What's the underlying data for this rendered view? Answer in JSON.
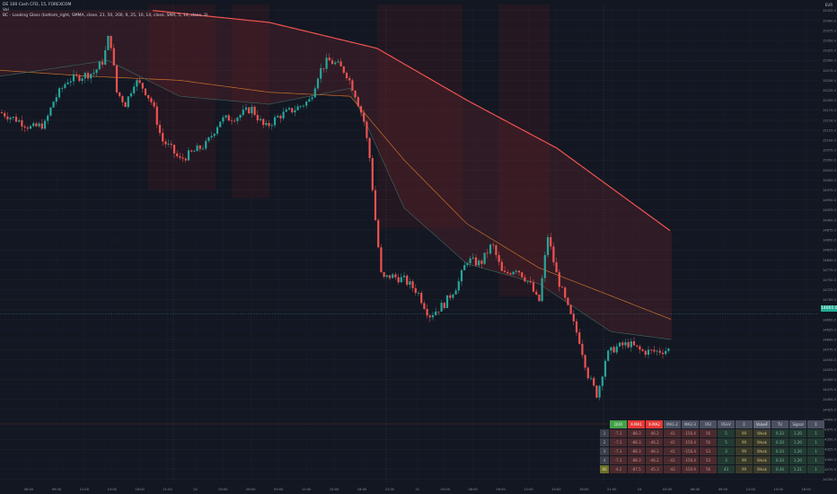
{
  "legend": {
    "line1": "DE 100 Cash CFD, 15, FOREXCOM",
    "line2": "Vol",
    "line3": "BC - Looking Glass (bottom_right, SMMA, close, 21, 50, 200, 9, 25, 10, 14, close, SMA, 5, 14, close, 3)"
  },
  "currency_label": "EUR",
  "current_price_label": "14665.0",
  "chart_data": {
    "type": "candlestick",
    "title": "",
    "x_ticks": [
      "06:00",
      "09:00",
      "12:00",
      "15:00",
      "18:00",
      "21:00",
      "20",
      "03:00",
      "06:00",
      "09:00",
      "12:00",
      "15:00",
      "18:00",
      "21:00",
      "21",
      "03:00",
      "06:00",
      "09:00",
      "12:00",
      "15:00",
      "18:00",
      "21:00",
      "24",
      "03:00",
      "06:00",
      "09:00",
      "12:00",
      "15:00",
      "18:00"
    ],
    "y_ticks": [
      15425,
      15400,
      15375,
      15350,
      15325,
      15300,
      15275,
      15250,
      15225,
      15200,
      15175,
      15150,
      15125,
      15100,
      15075,
      15050,
      15025,
      15000,
      14975,
      14950,
      14925,
      14900,
      14875,
      14850,
      14825,
      14800,
      14775,
      14750,
      14725,
      14700,
      14675,
      14650,
      14625,
      14600,
      14575,
      14550,
      14525,
      14500,
      14475,
      14450,
      14425,
      14400,
      14375,
      14350,
      14325,
      14300,
      14275,
      14250
    ],
    "ylim": [
      14240,
      15440
    ],
    "last_price": 14665.0,
    "price_path": [
      [
        0,
        15170
      ],
      [
        20,
        15150
      ],
      [
        35,
        15130
      ],
      [
        50,
        15140
      ],
      [
        60,
        15200
      ],
      [
        75,
        15250
      ],
      [
        90,
        15260
      ],
      [
        105,
        15270
      ],
      [
        115,
        15300
      ],
      [
        122,
        15370
      ],
      [
        130,
        15220
      ],
      [
        140,
        15190
      ],
      [
        150,
        15250
      ],
      [
        160,
        15230
      ],
      [
        170,
        15190
      ],
      [
        180,
        15100
      ],
      [
        190,
        15080
      ],
      [
        200,
        15050
      ],
      [
        215,
        15070
      ],
      [
        230,
        15090
      ],
      [
        245,
        15150
      ],
      [
        265,
        15160
      ],
      [
        280,
        15180
      ],
      [
        295,
        15130
      ],
      [
        310,
        15160
      ],
      [
        330,
        15180
      ],
      [
        345,
        15200
      ],
      [
        355,
        15270
      ],
      [
        365,
        15300
      ],
      [
        375,
        15290
      ],
      [
        385,
        15270
      ],
      [
        395,
        15220
      ],
      [
        405,
        15150
      ],
      [
        412,
        15050
      ],
      [
        418,
        14900
      ],
      [
        425,
        14750
      ],
      [
        435,
        14760
      ],
      [
        450,
        14750
      ],
      [
        465,
        14720
      ],
      [
        478,
        14660
      ],
      [
        495,
        14690
      ],
      [
        510,
        14740
      ],
      [
        520,
        14800
      ],
      [
        535,
        14790
      ],
      [
        548,
        14840
      ],
      [
        560,
        14760
      ],
      [
        575,
        14780
      ],
      [
        590,
        14740
      ],
      [
        600,
        14690
      ],
      [
        610,
        14860
      ],
      [
        620,
        14760
      ],
      [
        632,
        14680
      ],
      [
        645,
        14600
      ],
      [
        655,
        14510
      ],
      [
        665,
        14460
      ],
      [
        675,
        14560
      ],
      [
        685,
        14580
      ],
      [
        700,
        14590
      ],
      [
        715,
        14570
      ],
      [
        730,
        14570
      ],
      [
        745,
        14575
      ]
    ],
    "smma_200": [
      [
        170,
        15425
      ],
      [
        300,
        15395
      ],
      [
        420,
        15330
      ],
      [
        520,
        15200
      ],
      [
        620,
        15080
      ],
      [
        748,
        14870
      ]
    ],
    "smma_50": [
      [
        0,
        15275
      ],
      [
        100,
        15260
      ],
      [
        200,
        15250
      ],
      [
        300,
        15220
      ],
      [
        390,
        15210
      ],
      [
        450,
        15050
      ],
      [
        520,
        14890
      ],
      [
        600,
        14780
      ],
      [
        680,
        14710
      ],
      [
        748,
        14650
      ]
    ],
    "smma_21": [
      [
        0,
        15260
      ],
      [
        120,
        15300
      ],
      [
        200,
        15210
      ],
      [
        300,
        15190
      ],
      [
        390,
        15230
      ],
      [
        450,
        14930
      ],
      [
        520,
        14790
      ],
      [
        600,
        14740
      ],
      [
        680,
        14620
      ],
      [
        748,
        14600
      ]
    ]
  },
  "table": {
    "headers": [
      "QUO",
      "X-MA1",
      "X-MA2",
      "MA1-2",
      "MA2-3",
      "RSI",
      "RSI-V",
      "Σ",
      "ValueF",
      "TU",
      "Signal",
      "Σ"
    ],
    "rows": [
      {
        "label": "1",
        "cells": [
          "-7.3",
          "-88.3",
          "-46.2",
          "-41",
          "-156.4",
          "56",
          "5",
          "99",
          "Weak",
          "0.33",
          "1.20",
          "1"
        ]
      },
      {
        "label": "2",
        "cells": [
          "-7.3",
          "-88.3",
          "-46.2",
          "-41",
          "-156.4",
          "56",
          "5",
          "99",
          "Weak",
          "0.33",
          "1.20",
          "1"
        ]
      },
      {
        "label": "3",
        "cells": [
          "-7.3",
          "-88.3",
          "-46.2",
          "-41",
          "-156.4",
          "53",
          "3",
          "99",
          "Weak",
          "0.33",
          "1.20",
          "1"
        ]
      },
      {
        "label": "4",
        "cells": [
          "-7.3",
          "-88.3",
          "-46.2",
          "-41",
          "-156.4",
          "53",
          "3",
          "99",
          "Weak",
          "0.33",
          "1.20",
          "1"
        ]
      },
      {
        "label": "60",
        "cells": [
          "-4.2",
          "-87.5",
          "-45.3",
          "-42",
          "-156.9",
          "56",
          "43",
          "99",
          "Weak",
          "0.34",
          "1.21",
          "1"
        ]
      }
    ]
  }
}
